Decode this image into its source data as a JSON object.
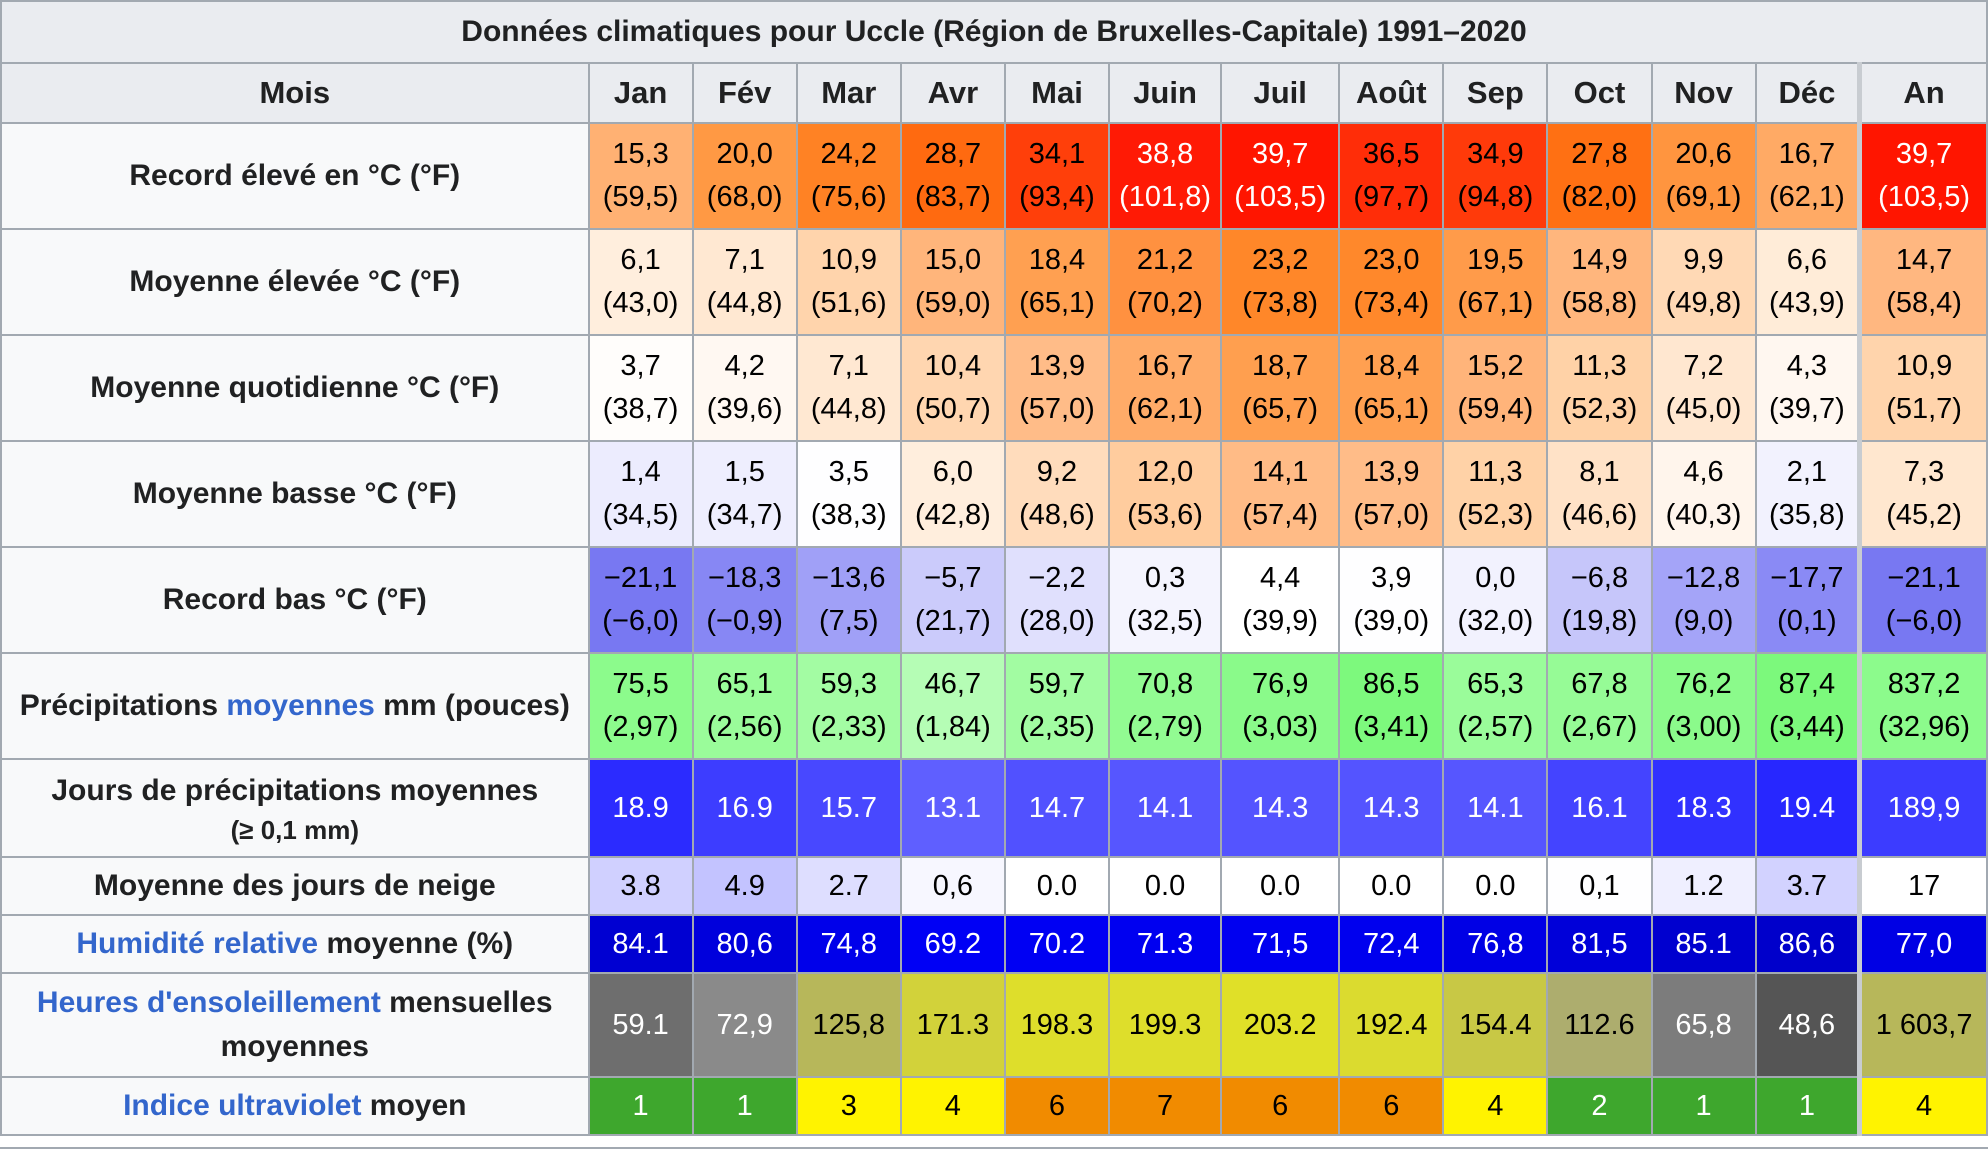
{
  "caption": "Données climatiques pour Uccle (Région de Bruxelles-Capitale) 1991–2020",
  "header": {
    "label": "Mois",
    "months": [
      "Jan",
      "Fév",
      "Mar",
      "Avr",
      "Mai",
      "Juin",
      "Juil",
      "Août",
      "Sep",
      "Oct",
      "Nov",
      "Déc"
    ],
    "year": "An"
  },
  "rows": [
    {
      "id": "record-high",
      "label": "Record élevé en °C (°F)",
      "text_color": "#000000",
      "values": [
        {
          "top": "15,3",
          "bottom": "(59,5)",
          "bg": "#ffb173"
        },
        {
          "top": "20,0",
          "bottom": "(68,0)",
          "bg": "#ff9944"
        },
        {
          "top": "24,2",
          "bottom": "(75,6)",
          "bg": "#ff8224"
        },
        {
          "top": "28,7",
          "bottom": "(83,7)",
          "bg": "#ff6a10"
        },
        {
          "top": "34,1",
          "bottom": "(93,4)",
          "bg": "#ff3f0a"
        },
        {
          "top": "38,8",
          "bottom": "(101,8)",
          "bg": "#ff1a05",
          "color": "#ffffff"
        },
        {
          "top": "39,7",
          "bottom": "(103,5)",
          "bg": "#ff1500",
          "color": "#ffffff"
        },
        {
          "top": "36,5",
          "bottom": "(97,7)",
          "bg": "#ff2d08"
        },
        {
          "top": "34,9",
          "bottom": "(94,8)",
          "bg": "#ff3a0a"
        },
        {
          "top": "27,8",
          "bottom": "(82,0)",
          "bg": "#ff7013"
        },
        {
          "top": "20,6",
          "bottom": "(69,1)",
          "bg": "#ff953f"
        },
        {
          "top": "16,7",
          "bottom": "(62,1)",
          "bg": "#ffaa65"
        }
      ],
      "year": {
        "top": "39,7",
        "bottom": "(103,5)",
        "bg": "#ff1500",
        "color": "#ffffff"
      }
    },
    {
      "id": "mean-high",
      "label": "Moyenne élevée °C (°F)",
      "text_color": "#000000",
      "values": [
        {
          "top": "6,1",
          "bottom": "(43,0)",
          "bg": "#ffeedd"
        },
        {
          "top": "7,1",
          "bottom": "(44,8)",
          "bg": "#ffe8d2"
        },
        {
          "top": "10,9",
          "bottom": "(51,6)",
          "bg": "#ffd4ac"
        },
        {
          "top": "15,0",
          "bottom": "(59,0)",
          "bg": "#ffb57b"
        },
        {
          "top": "18,4",
          "bottom": "(65,1)",
          "bg": "#ffa051"
        },
        {
          "top": "21,2",
          "bottom": "(70,2)",
          "bg": "#ff9140"
        },
        {
          "top": "23,2",
          "bottom": "(73,8)",
          "bg": "#ff8729"
        },
        {
          "top": "23,0",
          "bottom": "(73,4)",
          "bg": "#ff882b"
        },
        {
          "top": "19,5",
          "bottom": "(67,1)",
          "bg": "#ff9b4a"
        },
        {
          "top": "14,9",
          "bottom": "(58,8)",
          "bg": "#ffb67d"
        },
        {
          "top": "9,9",
          "bottom": "(49,8)",
          "bg": "#ffd9b5"
        },
        {
          "top": "6,6",
          "bottom": "(43,9)",
          "bg": "#ffecd8"
        }
      ],
      "year": {
        "top": "14,7",
        "bottom": "(58,4)",
        "bg": "#ffb780"
      }
    },
    {
      "id": "mean-daily",
      "label": "Moyenne quotidienne °C (°F)",
      "text_color": "#000000",
      "values": [
        {
          "top": "3,7",
          "bottom": "(38,7)",
          "bg": "#fffdfb"
        },
        {
          "top": "4,2",
          "bottom": "(39,6)",
          "bg": "#fff8f2"
        },
        {
          "top": "7,1",
          "bottom": "(44,8)",
          "bg": "#ffe8d2"
        },
        {
          "top": "10,4",
          "bottom": "(50,7)",
          "bg": "#ffd6b0"
        },
        {
          "top": "13,9",
          "bottom": "(57,0)",
          "bg": "#ffbc88"
        },
        {
          "top": "16,7",
          "bottom": "(62,1)",
          "bg": "#ffab68"
        },
        {
          "top": "18,7",
          "bottom": "(65,7)",
          "bg": "#ff9f4f"
        },
        {
          "top": "18,4",
          "bottom": "(65,1)",
          "bg": "#ffa051"
        },
        {
          "top": "15,2",
          "bottom": "(59,4)",
          "bg": "#ffb47a"
        },
        {
          "top": "11,3",
          "bottom": "(52,3)",
          "bg": "#ffd2a7"
        },
        {
          "top": "7,2",
          "bottom": "(45,0)",
          "bg": "#ffe7d0"
        },
        {
          "top": "4,3",
          "bottom": "(39,7)",
          "bg": "#fff7f0"
        }
      ],
      "year": {
        "top": "10,9",
        "bottom": "(51,7)",
        "bg": "#ffd4ac"
      }
    },
    {
      "id": "mean-low",
      "label": "Moyenne basse °C (°F)",
      "text_color": "#000000",
      "values": [
        {
          "top": "1,4",
          "bottom": "(34,5)",
          "bg": "#ececfe"
        },
        {
          "top": "1,5",
          "bottom": "(34,7)",
          "bg": "#eeeefe"
        },
        {
          "top": "3,5",
          "bottom": "(38,3)",
          "bg": "#fefeff"
        },
        {
          "top": "6,0",
          "bottom": "(42,8)",
          "bg": "#ffeedd"
        },
        {
          "top": "9,2",
          "bottom": "(48,6)",
          "bg": "#ffdcbc"
        },
        {
          "top": "12,0",
          "bottom": "(53,6)",
          "bg": "#ffcc9e"
        },
        {
          "top": "14,1",
          "bottom": "(57,4)",
          "bg": "#ffbb86"
        },
        {
          "top": "13,9",
          "bottom": "(57,0)",
          "bg": "#ffbc88"
        },
        {
          "top": "11,3",
          "bottom": "(52,3)",
          "bg": "#ffd2a7"
        },
        {
          "top": "8,1",
          "bottom": "(46,6)",
          "bg": "#ffe2c7"
        },
        {
          "top": "4,6",
          "bottom": "(40,3)",
          "bg": "#fff5ec"
        },
        {
          "top": "2,1",
          "bottom": "(35,8)",
          "bg": "#f2f2fe"
        }
      ],
      "year": {
        "top": "7,3",
        "bottom": "(45,2)",
        "bg": "#ffe7cf"
      }
    },
    {
      "id": "record-low",
      "label": "Record bas °C (°F)",
      "text_color": "#000000",
      "values": [
        {
          "top": "−21,1",
          "bottom": "(−6,0)",
          "bg": "#7878f2"
        },
        {
          "top": "−18,3",
          "bottom": "(−0,9)",
          "bg": "#8787f4"
        },
        {
          "top": "−13,6",
          "bottom": "(7,5)",
          "bg": "#a0a0f7"
        },
        {
          "top": "−5,7",
          "bottom": "(21,7)",
          "bg": "#cbcbfb"
        },
        {
          "top": "−2,2",
          "bottom": "(28,0)",
          "bg": "#e0e0fd"
        },
        {
          "top": "0,3",
          "bottom": "(32,5)",
          "bg": "#f4f4fe"
        },
        {
          "top": "4,4",
          "bottom": "(39,9)",
          "bg": "#ffffff"
        },
        {
          "top": "3,9",
          "bottom": "(39,0)",
          "bg": "#fefeff"
        },
        {
          "top": "0,0",
          "bottom": "(32,0)",
          "bg": "#f2f2fe"
        },
        {
          "top": "−6,8",
          "bottom": "(19,8)",
          "bg": "#c6c6fa"
        },
        {
          "top": "−12,8",
          "bottom": "(9,0)",
          "bg": "#a4a4f8"
        },
        {
          "top": "−17,7",
          "bottom": "(0,1)",
          "bg": "#8a8af5"
        }
      ],
      "year": {
        "top": "−21,1",
        "bottom": "(−6,0)",
        "bg": "#7878f2"
      }
    }
  ],
  "precip": {
    "label_before": "Précipitations ",
    "label_link": "moyennes",
    "label_after": " mm (pouces)",
    "values": [
      {
        "top": "75,5",
        "bottom": "(2,97)",
        "bg": "#8cfb8c"
      },
      {
        "top": "65,1",
        "bottom": "(2,56)",
        "bg": "#9afc9a"
      },
      {
        "top": "59,3",
        "bottom": "(2,33)",
        "bg": "#a3fca3"
      },
      {
        "top": "46,7",
        "bottom": "(1,84)",
        "bg": "#b5fdb5"
      },
      {
        "top": "59,7",
        "bottom": "(2,35)",
        "bg": "#a2fca2"
      },
      {
        "top": "70,8",
        "bottom": "(2,79)",
        "bg": "#92fb92"
      },
      {
        "top": "76,9",
        "bottom": "(3,03)",
        "bg": "#8afa8a"
      },
      {
        "top": "86,5",
        "bottom": "(3,41)",
        "bg": "#7df97d"
      },
      {
        "top": "65,3",
        "bottom": "(2,57)",
        "bg": "#9afc9a"
      },
      {
        "top": "67,8",
        "bottom": "(2,67)",
        "bg": "#96fb96"
      },
      {
        "top": "76,2",
        "bottom": "(3,00)",
        "bg": "#8bfa8b"
      },
      {
        "top": "87,4",
        "bottom": "(3,44)",
        "bg": "#7cf97c"
      }
    ],
    "year": {
      "top": "837,2",
      "bottom": "(32,96)",
      "bg": "#8cfb8c"
    }
  },
  "precip_days": {
    "label": "Jours de précipitations moyennes",
    "sublabel": "(≥ 0,1 mm)",
    "values": [
      {
        "v": "18.9",
        "bg": "#2b2bff"
      },
      {
        "v": "16.9",
        "bg": "#3d3dff"
      },
      {
        "v": "15.7",
        "bg": "#4848ff"
      },
      {
        "v": "13.1",
        "bg": "#5f5fff"
      },
      {
        "v": "14.7",
        "bg": "#5151ff"
      },
      {
        "v": "14.1",
        "bg": "#5656ff"
      },
      {
        "v": "14.3",
        "bg": "#5454ff"
      },
      {
        "v": "14.3",
        "bg": "#5454ff"
      },
      {
        "v": "14.1",
        "bg": "#5656ff"
      },
      {
        "v": "16.1",
        "bg": "#4444ff"
      },
      {
        "v": "18.3",
        "bg": "#3131ff"
      },
      {
        "v": "19.4",
        "bg": "#2727ff"
      }
    ],
    "year": {
      "v": "189,9",
      "bg": "#3c3cff"
    },
    "text_color": "#ffffff"
  },
  "snow_days": {
    "label": "Moyenne des jours de neige",
    "values": [
      {
        "v": "3.8",
        "bg": "#d0d0ff"
      },
      {
        "v": "4.9",
        "bg": "#c3c3ff"
      },
      {
        "v": "2.7",
        "bg": "#dedeff"
      },
      {
        "v": "0,6",
        "bg": "#f7f7ff"
      },
      {
        "v": "0.0",
        "bg": "#ffffff"
      },
      {
        "v": "0.0",
        "bg": "#ffffff"
      },
      {
        "v": "0.0",
        "bg": "#ffffff"
      },
      {
        "v": "0.0",
        "bg": "#ffffff"
      },
      {
        "v": "0.0",
        "bg": "#ffffff"
      },
      {
        "v": "0,1",
        "bg": "#fefeff"
      },
      {
        "v": "1.2",
        "bg": "#efefff"
      },
      {
        "v": "3.7",
        "bg": "#d2d2ff"
      }
    ],
    "year": {
      "v": "17",
      "bg": "#ffffff"
    },
    "text_color": "#000000"
  },
  "humidity": {
    "label_link": "Humidité relative",
    "label_after": " moyenne (%)",
    "values": [
      {
        "v": "84.1",
        "bg": "#0000d2"
      },
      {
        "v": "80,6",
        "bg": "#0000dc"
      },
      {
        "v": "74,8",
        "bg": "#0000ea"
      },
      {
        "v": "69.2",
        "bg": "#0000f5"
      },
      {
        "v": "70.2",
        "bg": "#0000f3"
      },
      {
        "v": "71.3",
        "bg": "#0000f0"
      },
      {
        "v": "71,5",
        "bg": "#0000f0"
      },
      {
        "v": "72,4",
        "bg": "#0000ee"
      },
      {
        "v": "76,8",
        "bg": "#0000e5"
      },
      {
        "v": "81,5",
        "bg": "#0000d9"
      },
      {
        "v": "85.1",
        "bg": "#0000cf"
      },
      {
        "v": "86,6",
        "bg": "#0000cb"
      }
    ],
    "year": {
      "v": "77,0",
      "bg": "#0000e4"
    },
    "text_color": "#ffffff"
  },
  "sunshine": {
    "label_link": "Heures d'ensoleillement",
    "label_after": " mensuelles moyennes",
    "values": [
      {
        "v": "59.1",
        "bg": "#6e6e6e",
        "color": "#ffffff"
      },
      {
        "v": "72,9",
        "bg": "#8a8a8a",
        "color": "#ffffff"
      },
      {
        "v": "125,8",
        "bg": "#b7b75a",
        "color": "#000000"
      },
      {
        "v": "171.3",
        "bg": "#d2d23a",
        "color": "#000000"
      },
      {
        "v": "198.3",
        "bg": "#dede2b",
        "color": "#000000"
      },
      {
        "v": "199.3",
        "bg": "#dede2b",
        "color": "#000000"
      },
      {
        "v": "203.2",
        "bg": "#e0e028",
        "color": "#000000"
      },
      {
        "v": "192.4",
        "bg": "#dbdb2f",
        "color": "#000000"
      },
      {
        "v": "154.4",
        "bg": "#c8c845",
        "color": "#000000"
      },
      {
        "v": "112.6",
        "bg": "#adad6e",
        "color": "#000000"
      },
      {
        "v": "65,8",
        "bg": "#7c7c7c",
        "color": "#ffffff"
      },
      {
        "v": "48,6",
        "bg": "#555555",
        "color": "#ffffff"
      }
    ],
    "year": {
      "v": "1 603,7",
      "bg": "#b7b75a",
      "color": "#000000"
    }
  },
  "uv": {
    "label_link": "Indice ultraviolet",
    "label_after": " moyen",
    "values": [
      {
        "v": "1",
        "bg": "#3ea72d",
        "color": "#ffffff"
      },
      {
        "v": "1",
        "bg": "#3ea72d",
        "color": "#ffffff"
      },
      {
        "v": "3",
        "bg": "#fff300",
        "color": "#000000"
      },
      {
        "v": "4",
        "bg": "#fff300",
        "color": "#000000"
      },
      {
        "v": "6",
        "bg": "#f18b00",
        "color": "#000000"
      },
      {
        "v": "7",
        "bg": "#f18b00",
        "color": "#000000"
      },
      {
        "v": "6",
        "bg": "#f18b00",
        "color": "#000000"
      },
      {
        "v": "6",
        "bg": "#f18b00",
        "color": "#000000"
      },
      {
        "v": "4",
        "bg": "#fff300",
        "color": "#000000"
      },
      {
        "v": "2",
        "bg": "#3ea72d",
        "color": "#ffffff"
      },
      {
        "v": "1",
        "bg": "#3ea72d",
        "color": "#ffffff"
      },
      {
        "v": "1",
        "bg": "#3ea72d",
        "color": "#ffffff"
      }
    ],
    "year": {
      "v": "4",
      "bg": "#fff300",
      "color": "#000000"
    }
  },
  "colors": {
    "link": "#3366cc",
    "header_bg": "#eaecf0",
    "label_bg": "#f8f9fa",
    "border": "#a2a9b1"
  }
}
